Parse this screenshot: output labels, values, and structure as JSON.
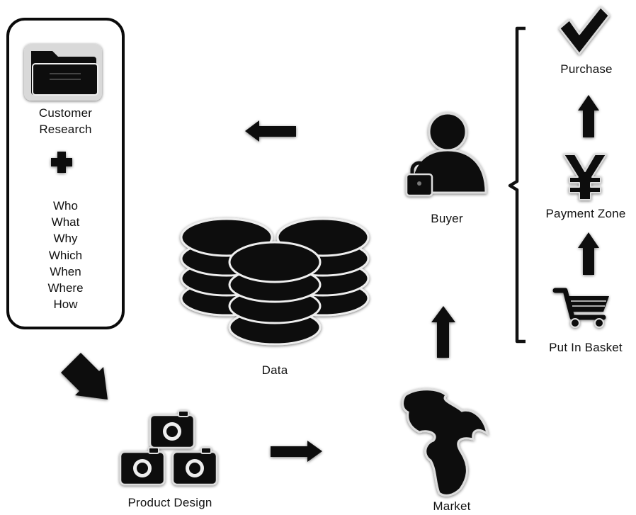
{
  "diagram": {
    "customer_research": {
      "label_line1": "Customer",
      "label_line2": "Research",
      "icon": "folder-icon"
    },
    "plus_icon": "plus-icon",
    "questions": [
      "Who",
      "What",
      "Why",
      "Which",
      "When",
      "Where",
      "How"
    ],
    "data": {
      "label": "Data",
      "icon": "database-stack-icon"
    },
    "product_design": {
      "label": "Product Design",
      "icon": "camera-stack-icon"
    },
    "market": {
      "label": "Market",
      "icon": "globe-icon"
    },
    "buyer": {
      "label": "Buyer",
      "icon": "user-lock-icon"
    },
    "purchase_steps": {
      "purchase": {
        "label": "Purchase",
        "icon": "checkmark-icon"
      },
      "payment_zone": {
        "label": "Payment Zone",
        "icon": "yen-icon"
      },
      "put_in_basket": {
        "label": "Put In Basket",
        "icon": "shopping-cart-icon"
      }
    }
  }
}
